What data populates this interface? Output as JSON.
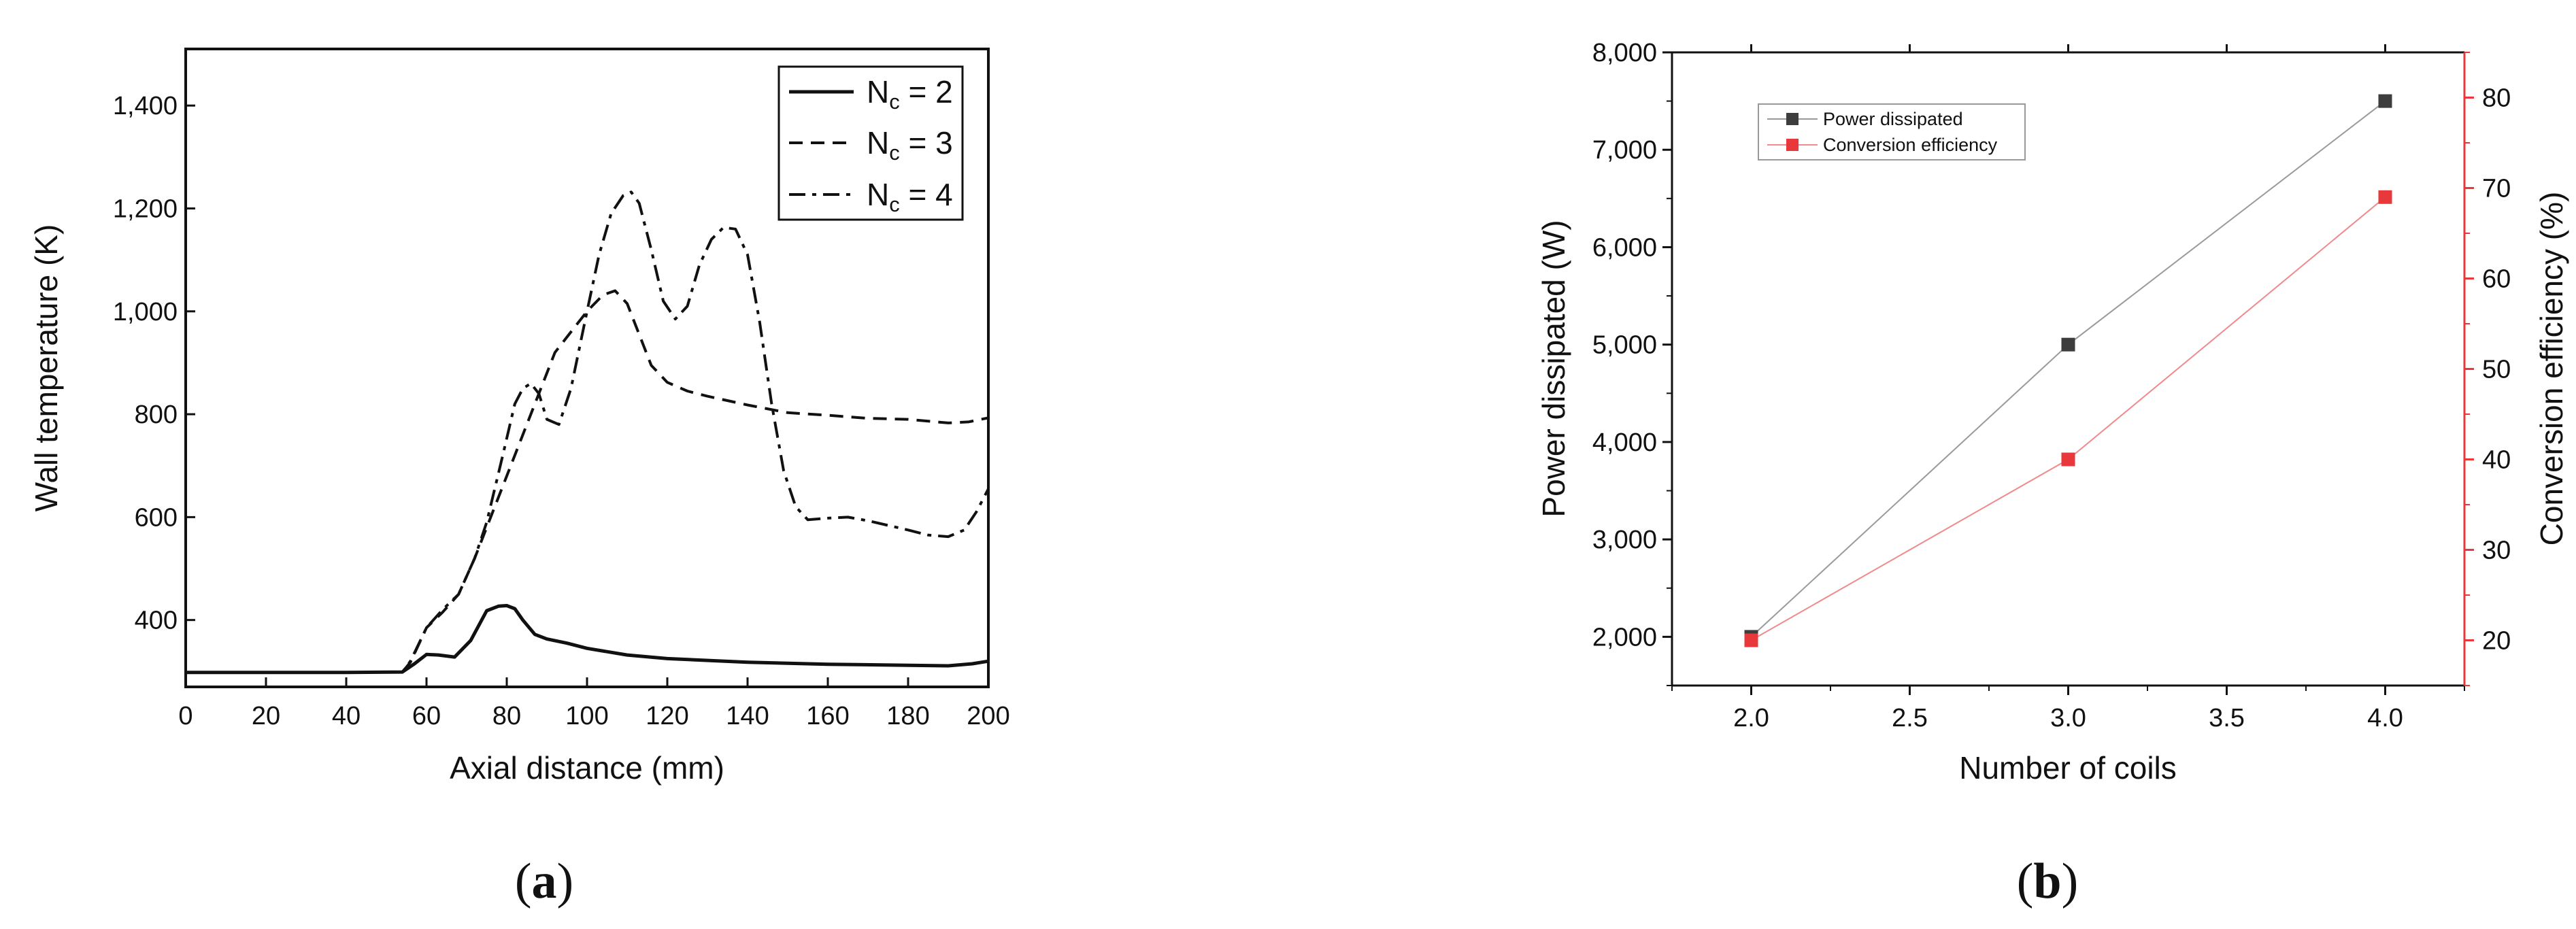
{
  "panels": [
    {
      "tag_open": "(",
      "tag_letter": "a",
      "tag_close": ")"
    },
    {
      "tag_open": "(",
      "tag_letter": "b",
      "tag_close": ")"
    }
  ],
  "chart_data": [
    {
      "type": "line",
      "title": "",
      "xlabel": "Axial distance (mm)",
      "ylabel": "Wall temperature (K)",
      "xlim": [
        0,
        200
      ],
      "ylim": [
        270,
        1510
      ],
      "xticks": [
        0,
        20,
        40,
        60,
        80,
        100,
        120,
        140,
        160,
        180,
        200
      ],
      "xtick_labels": [
        "0",
        "20",
        "40",
        "60",
        "80",
        "100",
        "120",
        "140",
        "160",
        "180",
        "200"
      ],
      "yticks": [
        400,
        600,
        800,
        1000,
        1200,
        1400
      ],
      "ytick_labels": [
        "400",
        "600",
        "800",
        "1,000",
        "1,200",
        "1,400"
      ],
      "grid": false,
      "legend": "top-right",
      "series": [
        {
          "name_base": "N",
          "name_sub": "c",
          "name_rest": " = 2",
          "style": "solid",
          "x": [
            0,
            40,
            54,
            57,
            60,
            63,
            67,
            71,
            75,
            78,
            80,
            82,
            84,
            87,
            90,
            95,
            100,
            110,
            120,
            140,
            160,
            180,
            190,
            196,
            200
          ],
          "y": [
            298,
            298,
            299,
            315,
            333,
            332,
            328,
            360,
            418,
            427,
            428,
            422,
            400,
            372,
            363,
            355,
            345,
            332,
            325,
            318,
            314,
            312,
            311,
            315,
            320
          ]
        },
        {
          "name_base": "N",
          "name_sub": "c",
          "name_rest": " = 3",
          "style": "dashed",
          "x": [
            0,
            40,
            54,
            56,
            60,
            64,
            68,
            72,
            76,
            80,
            84,
            88,
            92,
            96,
            100,
            104,
            107,
            110,
            113,
            116,
            120,
            125,
            130,
            140,
            150,
            160,
            170,
            180,
            190,
            195,
            200
          ],
          "y": [
            298,
            298,
            299,
            318,
            385,
            415,
            450,
            520,
            600,
            680,
            760,
            840,
            920,
            960,
            1000,
            1032,
            1040,
            1015,
            955,
            895,
            862,
            845,
            835,
            818,
            803,
            798,
            792,
            790,
            783,
            785,
            793
          ]
        },
        {
          "name_base": "N",
          "name_sub": "c",
          "name_rest": " = 4",
          "style": "dashdot",
          "x": [
            0,
            40,
            54,
            56,
            60,
            64,
            68,
            72,
            75,
            79,
            82,
            84,
            86,
            88,
            90,
            93,
            96,
            100,
            103,
            106,
            109,
            111,
            113,
            116,
            119,
            122,
            125,
            128,
            131,
            134,
            137,
            140,
            143,
            146,
            149,
            152,
            155,
            160,
            165,
            170,
            180,
            185,
            190,
            194,
            197,
            200
          ],
          "y": [
            298,
            298,
            299,
            320,
            385,
            420,
            450,
            520,
            590,
            720,
            820,
            850,
            860,
            840,
            790,
            780,
            850,
            1000,
            1110,
            1190,
            1225,
            1232,
            1210,
            1120,
            1020,
            985,
            1010,
            1090,
            1140,
            1163,
            1160,
            1110,
            980,
            820,
            690,
            620,
            595,
            598,
            600,
            593,
            575,
            565,
            562,
            575,
            610,
            655
          ]
        }
      ]
    },
    {
      "type": "scatter",
      "title": "",
      "xlabel": "Number of coils",
      "ylabel": "Power dissipated (W)",
      "ylabel_right": "Conversion efficiency (%)",
      "xlim": [
        1.75,
        4.25
      ],
      "ylim": [
        1500,
        8000
      ],
      "ylim_right": [
        15,
        85
      ],
      "xticks": [
        2.0,
        2.5,
        3.0,
        3.5,
        4.0
      ],
      "xtick_labels": [
        "2.0",
        "2.5",
        "3.0",
        "3.5",
        "4.0"
      ],
      "yticks": [
        2000,
        3000,
        4000,
        5000,
        6000,
        7000,
        8000
      ],
      "ytick_labels": [
        "2,000",
        "3,000",
        "4,000",
        "5,000",
        "6,000",
        "7,000",
        "8,000"
      ],
      "yticks_right": [
        20,
        30,
        40,
        50,
        60,
        70,
        80
      ],
      "ytick_labels_right": [
        "20",
        "30",
        "40",
        "50",
        "60",
        "70",
        "80"
      ],
      "grid": false,
      "legend": "top-left",
      "colors": {
        "power": "#3d3d3d",
        "efficiency": "#e8383b",
        "right_axis": "#e8383b"
      },
      "series": [
        {
          "name": "Power dissipated",
          "axis": "left",
          "color": "#3d3d3d",
          "x": [
            2,
            3,
            4
          ],
          "y": [
            2000,
            5000,
            7500
          ]
        },
        {
          "name": "Conversion efficiency",
          "axis": "right",
          "color": "#e8383b",
          "x": [
            2,
            3,
            4
          ],
          "y": [
            20,
            40,
            69
          ]
        }
      ]
    }
  ]
}
